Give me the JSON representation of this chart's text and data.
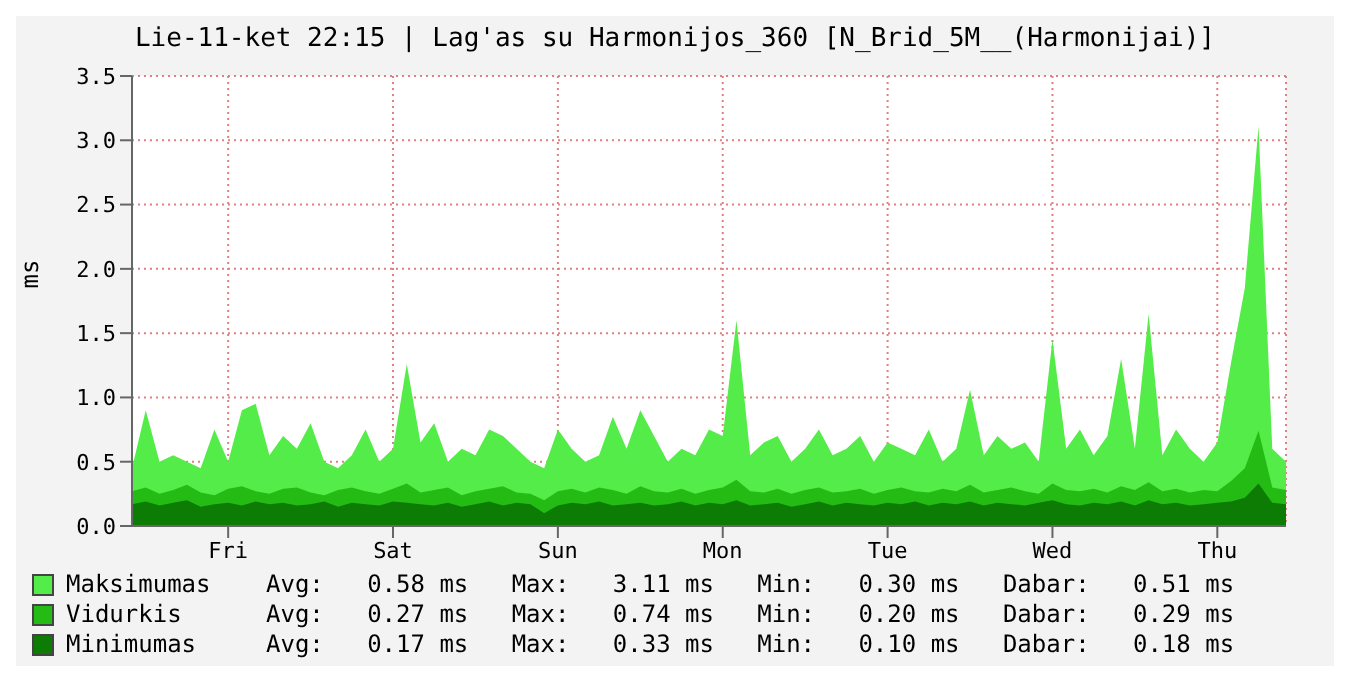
{
  "chart_data": {
    "type": "area",
    "title": "Lie-11-ket 22:15 | Lag'as su Harmonijos_360 [N_Brid_5M__(Harmonijai)]",
    "ylabel": "ms",
    "categories": [
      null,
      null,
      null,
      null,
      null,
      null,
      null,
      "Fri",
      null,
      null,
      null,
      null,
      null,
      null,
      null,
      null,
      null,
      null,
      null,
      "Sat",
      null,
      null,
      null,
      null,
      null,
      null,
      null,
      null,
      null,
      null,
      null,
      "Sun",
      null,
      null,
      null,
      null,
      null,
      null,
      null,
      null,
      null,
      null,
      null,
      "Mon",
      null,
      null,
      null,
      null,
      null,
      null,
      null,
      null,
      null,
      null,
      null,
      "Tue",
      null,
      null,
      null,
      null,
      null,
      null,
      null,
      null,
      null,
      null,
      null,
      "Wed",
      null,
      null,
      null,
      null,
      null,
      null,
      null,
      null,
      null,
      null,
      null,
      "Thu",
      null,
      null,
      null,
      null,
      null
    ],
    "ylim": [
      0,
      3.5
    ],
    "yticks": [
      {
        "value": 0,
        "label": "0.0"
      },
      {
        "value": 0.5,
        "label": "0.5"
      },
      {
        "value": 1,
        "label": "1.0"
      },
      {
        "value": 1.5,
        "label": "1.5"
      },
      {
        "value": 2,
        "label": "2.0"
      },
      {
        "value": 2.5,
        "label": "2.5"
      },
      {
        "value": 3,
        "label": "3.0"
      },
      {
        "value": 3.5,
        "label": "3.5"
      }
    ],
    "grid": true,
    "legend": "bottom",
    "series": [
      {
        "name": "Maksimumas",
        "color": "#54ec48",
        "values": [
          0.45,
          0.9,
          0.5,
          0.55,
          0.5,
          0.45,
          0.75,
          0.5,
          0.9,
          0.95,
          0.55,
          0.7,
          0.6,
          0.8,
          0.5,
          0.45,
          0.55,
          0.75,
          0.5,
          0.6,
          1.26,
          0.65,
          0.8,
          0.5,
          0.6,
          0.55,
          0.75,
          0.7,
          0.6,
          0.5,
          0.45,
          0.75,
          0.6,
          0.5,
          0.55,
          0.85,
          0.6,
          0.9,
          0.7,
          0.5,
          0.6,
          0.55,
          0.75,
          0.7,
          1.6,
          0.55,
          0.65,
          0.7,
          0.5,
          0.6,
          0.75,
          0.55,
          0.6,
          0.7,
          0.5,
          0.65,
          0.6,
          0.55,
          0.75,
          0.5,
          0.6,
          1.06,
          0.55,
          0.7,
          0.6,
          0.65,
          0.5,
          1.45,
          0.6,
          0.75,
          0.55,
          0.7,
          1.3,
          0.6,
          1.65,
          0.55,
          0.75,
          0.6,
          0.5,
          0.65,
          1.27,
          1.85,
          3.11,
          0.6,
          0.5
        ]
      },
      {
        "name": "Vidurkis",
        "color": "#24bc14",
        "values": [
          0.27,
          0.3,
          0.25,
          0.28,
          0.32,
          0.26,
          0.24,
          0.29,
          0.31,
          0.27,
          0.25,
          0.29,
          0.3,
          0.26,
          0.24,
          0.28,
          0.3,
          0.27,
          0.25,
          0.29,
          0.33,
          0.26,
          0.28,
          0.3,
          0.24,
          0.27,
          0.29,
          0.31,
          0.26,
          0.25,
          0.2,
          0.27,
          0.29,
          0.26,
          0.3,
          0.28,
          0.25,
          0.31,
          0.27,
          0.26,
          0.29,
          0.25,
          0.28,
          0.3,
          0.36,
          0.27,
          0.26,
          0.29,
          0.25,
          0.28,
          0.3,
          0.26,
          0.27,
          0.29,
          0.25,
          0.28,
          0.3,
          0.27,
          0.26,
          0.29,
          0.27,
          0.32,
          0.26,
          0.28,
          0.3,
          0.27,
          0.25,
          0.33,
          0.28,
          0.27,
          0.29,
          0.26,
          0.31,
          0.28,
          0.34,
          0.27,
          0.29,
          0.26,
          0.28,
          0.27,
          0.35,
          0.45,
          0.74,
          0.3,
          0.28
        ]
      },
      {
        "name": "Minimumas",
        "color": "#0c7c04",
        "values": [
          0.17,
          0.19,
          0.16,
          0.18,
          0.2,
          0.15,
          0.17,
          0.18,
          0.16,
          0.19,
          0.17,
          0.18,
          0.16,
          0.17,
          0.19,
          0.15,
          0.18,
          0.17,
          0.16,
          0.19,
          0.18,
          0.17,
          0.16,
          0.18,
          0.15,
          0.17,
          0.19,
          0.16,
          0.18,
          0.17,
          0.1,
          0.16,
          0.18,
          0.17,
          0.19,
          0.16,
          0.17,
          0.18,
          0.16,
          0.17,
          0.19,
          0.16,
          0.18,
          0.17,
          0.2,
          0.16,
          0.17,
          0.18,
          0.15,
          0.17,
          0.19,
          0.16,
          0.18,
          0.17,
          0.16,
          0.18,
          0.17,
          0.19,
          0.16,
          0.18,
          0.17,
          0.19,
          0.16,
          0.18,
          0.17,
          0.16,
          0.18,
          0.2,
          0.17,
          0.16,
          0.18,
          0.17,
          0.19,
          0.16,
          0.2,
          0.17,
          0.18,
          0.16,
          0.17,
          0.18,
          0.19,
          0.22,
          0.33,
          0.18,
          0.17
        ]
      }
    ],
    "annotations": [
      "Avg:   0.58 ms   Max:   3.11 ms   Min:   0.30 ms   Dabar:   0.51 ms",
      "Avg:   0.27 ms   Max:   0.74 ms   Min:   0.20 ms   Dabar:   0.29 ms",
      "Avg:   0.17 ms   Max:   0.33 ms   Min:   0.10 ms   Dabar:   0.18 ms"
    ]
  }
}
